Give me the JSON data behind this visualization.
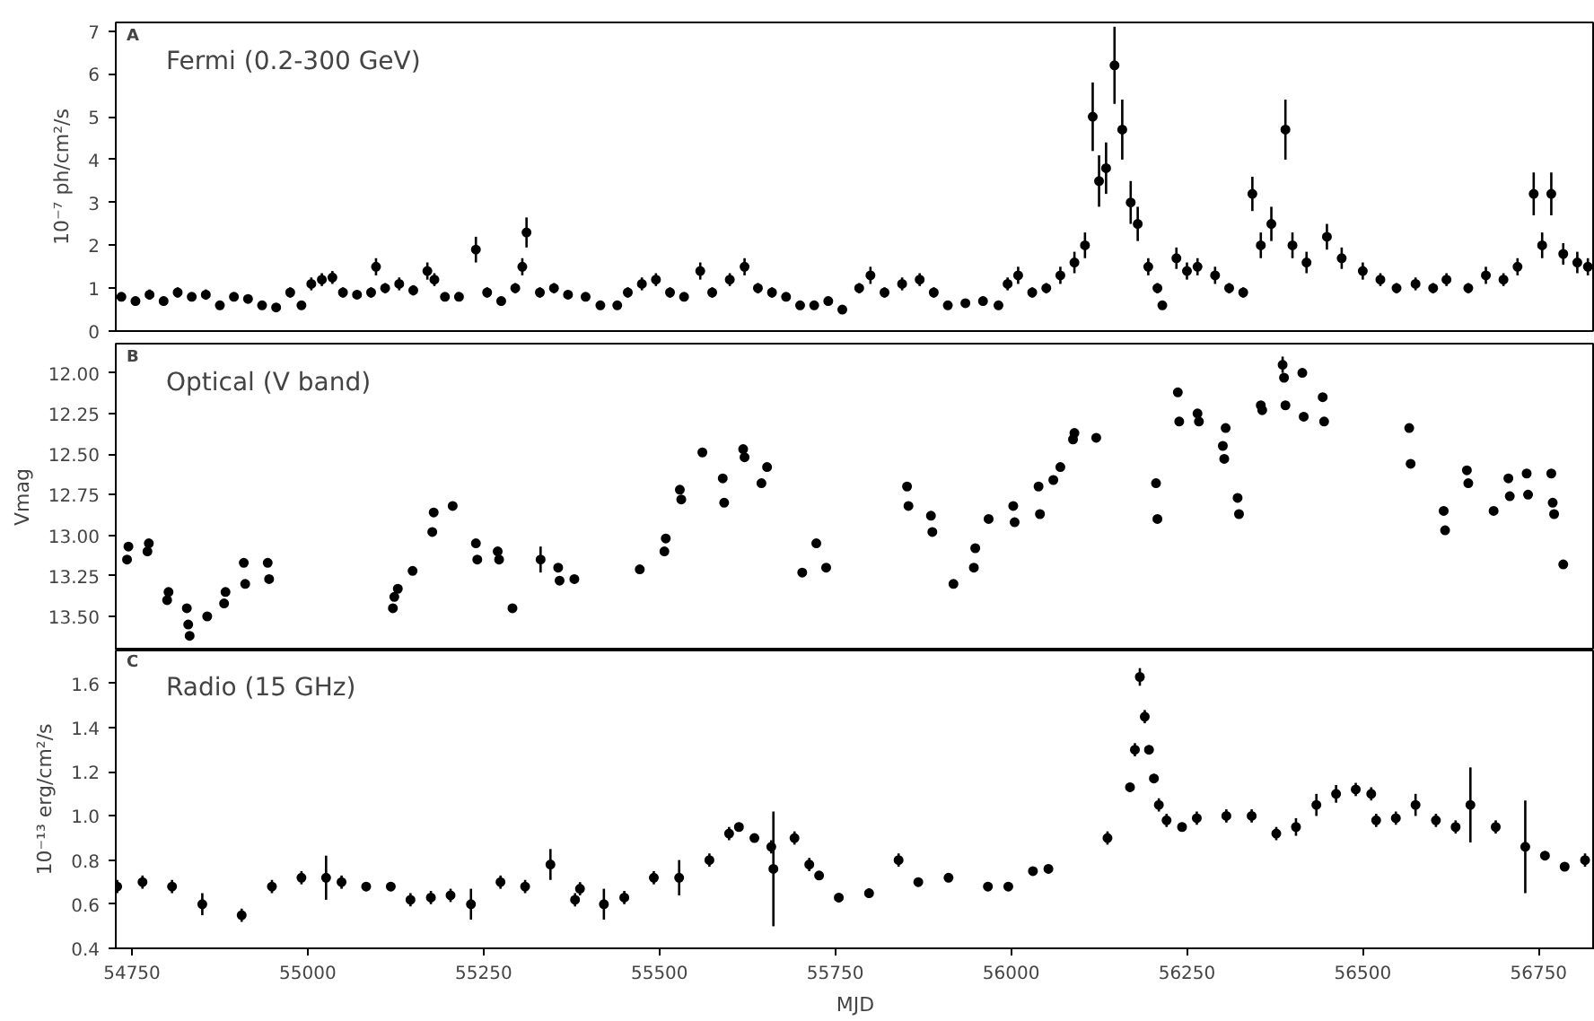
{
  "chart_data": [
    {
      "type": "scatter",
      "title": "Fermi (0.2-300 GeV)",
      "annotations": [
        "A"
      ],
      "ylabel": "10⁻⁷ ph/cm²/s",
      "marker": "circle",
      "grid": false,
      "tick_labels": "y",
      "xlim": [
        54727,
        56830
      ],
      "xticks": [
        54750,
        55000,
        55250,
        55500,
        55750,
        56000,
        56250,
        56500,
        56750
      ],
      "ylim": [
        0,
        7.2
      ],
      "yticks": [
        0,
        1,
        2,
        3,
        4,
        5,
        6,
        7
      ],
      "series": [
        {
          "color": "#000000",
          "x": [
            54735,
            54755,
            54775,
            54795,
            54815,
            54835,
            54855,
            54875,
            54895,
            54915,
            54935,
            54955,
            54975,
            54991,
            55005,
            55020,
            55035,
            55050,
            55070,
            55090,
            55097,
            55110,
            55130,
            55150,
            55170,
            55180,
            55195,
            55215,
            55239,
            55255,
            55275,
            55295,
            55305,
            55311,
            55330,
            55350,
            55370,
            55395,
            55416,
            55440,
            55455,
            55475,
            55495,
            55515,
            55535,
            55558,
            55575,
            55600,
            55621,
            55640,
            55660,
            55680,
            55700,
            55720,
            55740,
            55760,
            55784,
            55800,
            55820,
            55845,
            55870,
            55890,
            55910,
            55935,
            55960,
            55982,
            55995,
            56010,
            56030,
            56050,
            56070,
            56090,
            56105,
            56116,
            56125,
            56135,
            56147,
            56158,
            56170,
            56180,
            56195,
            56208,
            56215,
            56235,
            56250,
            56265,
            56290,
            56310,
            56330,
            56343,
            56355,
            56370,
            56390,
            56400,
            56420,
            56449,
            56470,
            56500,
            56525,
            56548,
            56575,
            56600,
            56619,
            56650,
            56675,
            56700,
            56720,
            56743,
            56755,
            56768,
            56785,
            56805,
            56820
          ],
          "values": [
            0.8,
            0.7,
            0.85,
            0.7,
            0.9,
            0.8,
            0.85,
            0.6,
            0.8,
            0.75,
            0.6,
            0.55,
            0.9,
            0.6,
            1.1,
            1.2,
            1.25,
            0.9,
            0.85,
            0.9,
            1.5,
            1.0,
            1.1,
            0.95,
            1.4,
            1.2,
            0.8,
            0.8,
            1.9,
            0.9,
            0.7,
            1.0,
            1.5,
            2.3,
            0.9,
            1.0,
            0.85,
            0.8,
            0.6,
            0.6,
            0.9,
            1.1,
            1.2,
            0.9,
            0.8,
            1.4,
            0.9,
            1.2,
            1.5,
            1.0,
            0.9,
            0.8,
            0.6,
            0.6,
            0.7,
            0.5,
            1.0,
            1.3,
            0.9,
            1.1,
            1.2,
            0.9,
            0.6,
            0.65,
            0.7,
            0.6,
            1.1,
            1.3,
            0.9,
            1.0,
            1.3,
            1.6,
            2.0,
            5.0,
            3.5,
            3.8,
            6.2,
            4.7,
            3.0,
            2.5,
            1.5,
            1.0,
            0.6,
            1.7,
            1.4,
            1.5,
            1.3,
            1.0,
            0.9,
            3.2,
            2.0,
            2.5,
            4.7,
            2.0,
            1.6,
            2.2,
            1.7,
            1.4,
            1.2,
            1.0,
            1.1,
            1.0,
            1.2,
            1.0,
            1.3,
            1.2,
            1.5,
            3.2,
            2.0,
            3.2,
            1.8,
            1.6,
            1.5
          ],
          "errors": [
            0.1,
            0.1,
            0.12,
            0.1,
            0.12,
            0.1,
            0.12,
            0.1,
            0.1,
            0.1,
            0.1,
            0.1,
            0.12,
            0.1,
            0.15,
            0.15,
            0.15,
            0.12,
            0.1,
            0.12,
            0.2,
            0.12,
            0.15,
            0.12,
            0.2,
            0.15,
            0.1,
            0.1,
            0.3,
            0.12,
            0.1,
            0.12,
            0.2,
            0.35,
            0.12,
            0.12,
            0.1,
            0.1,
            0.1,
            0.1,
            0.12,
            0.15,
            0.15,
            0.12,
            0.1,
            0.2,
            0.12,
            0.15,
            0.2,
            0.12,
            0.12,
            0.1,
            0.1,
            0.1,
            0.1,
            0.1,
            0.12,
            0.2,
            0.12,
            0.15,
            0.15,
            0.12,
            0.1,
            0.1,
            0.1,
            0.1,
            0.15,
            0.2,
            0.12,
            0.12,
            0.2,
            0.25,
            0.3,
            0.8,
            0.6,
            0.6,
            0.9,
            0.7,
            0.5,
            0.4,
            0.2,
            0.12,
            0.1,
            0.25,
            0.2,
            0.2,
            0.2,
            0.12,
            0.12,
            0.4,
            0.3,
            0.4,
            0.7,
            0.3,
            0.25,
            0.3,
            0.25,
            0.2,
            0.15,
            0.12,
            0.15,
            0.12,
            0.15,
            0.12,
            0.2,
            0.15,
            0.2,
            0.5,
            0.3,
            0.5,
            0.25,
            0.25,
            0.2
          ]
        }
      ]
    },
    {
      "type": "scatter",
      "title": "Optical (V band)",
      "annotations": [
        "B"
      ],
      "ylabel": "Vmag",
      "marker": "circle",
      "grid": false,
      "tick_labels": "y",
      "xlim": [
        54727,
        56830
      ],
      "xticks": [
        54750,
        55000,
        55250,
        55500,
        55750,
        56000,
        56250,
        56500,
        56750
      ],
      "ylim": [
        13.71,
        11.82
      ],
      "yticks": [
        {
          "value": 12,
          "label": "12.00"
        },
        {
          "value": 12.25,
          "label": "12.25"
        },
        {
          "value": 12.5,
          "label": "12.50"
        },
        {
          "value": 12.75,
          "label": "12.75"
        },
        {
          "value": 13,
          "label": "13.00"
        },
        {
          "value": 13.25,
          "label": "13.25"
        },
        {
          "value": 13.5,
          "label": "13.50"
        }
      ],
      "series": [
        {
          "color": "#000000",
          "x": [
            54743,
            54745,
            54772,
            54774,
            54800,
            54802,
            54828,
            54830,
            54832,
            54857,
            54881,
            54883,
            54909,
            54911,
            54943,
            54945,
            55121,
            55123,
            55128,
            55149,
            55177,
            55179,
            55206,
            55239,
            55241,
            55270,
            55272,
            55291,
            55331,
            55356,
            55358,
            55379,
            55472,
            55507,
            55509,
            55529,
            55531,
            55561,
            55590,
            55592,
            55619,
            55621,
            55645,
            55653,
            55703,
            55723,
            55737,
            55852,
            55854,
            55886,
            55888,
            55918,
            55947,
            55949,
            55968,
            56003,
            56005,
            56039,
            56041,
            56060,
            56070,
            56088,
            56090,
            56121,
            56206,
            56208,
            56237,
            56239,
            56265,
            56267,
            56301,
            56303,
            56305,
            56322,
            56324,
            56355,
            56357,
            56386,
            56388,
            56390,
            56414,
            56416,
            56443,
            56445,
            56566,
            56568,
            56615,
            56617,
            56648,
            56650,
            56686,
            56707,
            56709,
            56733,
            56735,
            56768,
            56770,
            56772,
            56785
          ],
          "values": [
            13.15,
            13.07,
            13.1,
            13.05,
            13.4,
            13.35,
            13.45,
            13.55,
            13.62,
            13.5,
            13.42,
            13.35,
            13.17,
            13.3,
            13.17,
            13.27,
            13.45,
            13.38,
            13.33,
            13.22,
            12.98,
            12.86,
            12.82,
            13.05,
            13.15,
            13.1,
            13.15,
            13.45,
            13.15,
            13.2,
            13.28,
            13.27,
            13.21,
            13.1,
            13.02,
            12.72,
            12.78,
            12.49,
            12.65,
            12.8,
            12.47,
            12.52,
            12.68,
            12.58,
            13.23,
            13.05,
            13.2,
            12.7,
            12.82,
            12.88,
            12.98,
            13.3,
            13.2,
            13.08,
            12.9,
            12.82,
            12.92,
            12.7,
            12.87,
            12.66,
            12.58,
            12.41,
            12.37,
            12.4,
            12.68,
            12.9,
            12.12,
            12.3,
            12.25,
            12.3,
            12.45,
            12.53,
            12.34,
            12.77,
            12.87,
            12.2,
            12.23,
            11.95,
            12.03,
            12.2,
            12.0,
            12.27,
            12.15,
            12.3,
            12.34,
            12.56,
            12.85,
            12.97,
            12.6,
            12.68,
            12.85,
            12.65,
            12.76,
            12.62,
            12.75,
            12.62,
            12.8,
            12.87,
            13.18
          ],
          "errors": [
            null,
            null,
            null,
            null,
            null,
            null,
            null,
            null,
            null,
            null,
            null,
            null,
            null,
            null,
            null,
            null,
            null,
            null,
            null,
            null,
            null,
            null,
            null,
            null,
            null,
            null,
            null,
            null,
            0.08,
            null,
            null,
            null,
            null,
            null,
            null,
            null,
            null,
            null,
            null,
            null,
            null,
            null,
            null,
            null,
            null,
            null,
            null,
            null,
            null,
            null,
            null,
            null,
            null,
            null,
            null,
            null,
            null,
            null,
            null,
            null,
            null,
            null,
            null,
            null,
            null,
            null,
            null,
            null,
            null,
            null,
            null,
            null,
            null,
            null,
            null,
            null,
            null,
            0.05,
            null,
            null,
            null,
            null,
            null,
            null,
            null,
            null,
            null,
            null,
            null,
            null,
            null,
            null,
            null,
            null,
            null,
            null,
            null,
            null,
            null
          ]
        }
      ]
    },
    {
      "type": "scatter",
      "title": "Radio (15 GHz)",
      "annotations": [
        "C"
      ],
      "xlabel": "MJD",
      "ylabel": "10⁻¹³ erg/cm²/s",
      "marker": "circle",
      "grid": false,
      "xlim": [
        54727,
        56830
      ],
      "xticks": [
        54750,
        55000,
        55250,
        55500,
        55750,
        56000,
        56250,
        56500,
        56750
      ],
      "ylim": [
        0.4,
        1.75
      ],
      "yticks": [
        {
          "value": 0.4,
          "label": "0.4"
        },
        {
          "value": 0.6,
          "label": "0.6"
        },
        {
          "value": 0.8,
          "label": "0.8"
        },
        {
          "value": 1.0,
          "label": "1.0"
        },
        {
          "value": 1.2,
          "label": "1.2"
        },
        {
          "value": 1.4,
          "label": "1.4"
        },
        {
          "value": 1.6,
          "label": "1.6"
        }
      ],
      "series": [
        {
          "color": "#000000",
          "x": [
            54729,
            54765,
            54807,
            54850,
            54906,
            54949,
            54991,
            55026,
            55048,
            55083,
            55118,
            55146,
            55175,
            55203,
            55232,
            55274,
            55309,
            55345,
            55380,
            55387,
            55421,
            55450,
            55492,
            55528,
            55571,
            55599,
            55613,
            55635,
            55659,
            55662,
            55692,
            55713,
            55727,
            55755,
            55798,
            55840,
            55868,
            55911,
            55967,
            55996,
            56031,
            56053,
            56137,
            56169,
            56176,
            56183,
            56190,
            56196,
            56203,
            56210,
            56221,
            56243,
            56264,
            56306,
            56342,
            56377,
            56405,
            56434,
            56462,
            56490,
            56512,
            56519,
            56547,
            56575,
            56604,
            56632,
            56653,
            56689,
            56731,
            56759,
            56787,
            56816
          ],
          "values": [
            0.68,
            0.7,
            0.68,
            0.6,
            0.55,
            0.68,
            0.72,
            0.72,
            0.7,
            0.68,
            0.68,
            0.62,
            0.63,
            0.64,
            0.6,
            0.7,
            0.68,
            0.78,
            0.62,
            0.67,
            0.6,
            0.63,
            0.72,
            0.72,
            0.8,
            0.92,
            0.95,
            0.9,
            0.86,
            0.76,
            0.9,
            0.78,
            0.73,
            0.63,
            0.65,
            0.8,
            0.7,
            0.72,
            0.68,
            0.68,
            0.75,
            0.76,
            0.9,
            1.13,
            1.3,
            1.63,
            1.45,
            1.3,
            1.17,
            1.05,
            0.98,
            0.95,
            0.99,
            1.0,
            1.0,
            0.92,
            0.95,
            1.05,
            1.1,
            1.12,
            1.1,
            0.98,
            0.99,
            1.05,
            0.98,
            0.95,
            1.05,
            0.95,
            0.86,
            0.82,
            0.77,
            0.8
          ],
          "errors": [
            0.03,
            0.03,
            0.03,
            0.05,
            0.03,
            0.03,
            0.03,
            0.1,
            0.03,
            0.02,
            0.02,
            0.03,
            0.03,
            0.03,
            0.07,
            0.03,
            0.03,
            0.07,
            0.03,
            0.03,
            0.07,
            0.03,
            0.03,
            0.08,
            0.03,
            0.03,
            0.02,
            0.02,
            0.03,
            0.26,
            0.03,
            0.03,
            0.02,
            0.02,
            0.02,
            0.03,
            0.02,
            0.02,
            0.02,
            0.02,
            0.02,
            0.02,
            0.03,
            0.02,
            0.03,
            0.04,
            0.03,
            0.02,
            0.02,
            0.03,
            0.03,
            0.02,
            0.03,
            0.03,
            0.03,
            0.03,
            0.04,
            0.05,
            0.04,
            0.03,
            0.03,
            0.03,
            0.03,
            0.05,
            0.03,
            0.03,
            0.17,
            0.03,
            0.21,
            0.02,
            0.02,
            0.03
          ]
        }
      ]
    }
  ]
}
